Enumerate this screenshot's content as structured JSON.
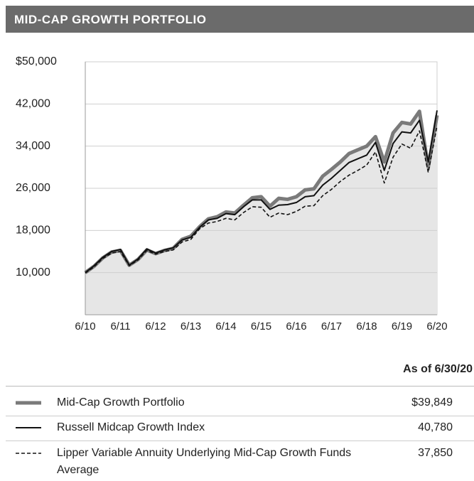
{
  "chart_data": {
    "type": "line",
    "title": "MID-CAP GROWTH PORTFOLIO",
    "categories": [
      "6/10",
      null,
      null,
      null,
      "6/11",
      null,
      null,
      null,
      "6/12",
      null,
      null,
      null,
      "6/13",
      null,
      null,
      null,
      "6/14",
      null,
      null,
      null,
      "6/15",
      null,
      null,
      null,
      "6/16",
      null,
      null,
      null,
      "6/17",
      null,
      null,
      null,
      "6/18",
      null,
      null,
      null,
      "6/19",
      null,
      null,
      null,
      "6/20"
    ],
    "ylim": [
      2000,
      50000
    ],
    "yticks": [
      {
        "value": 50000,
        "label": "$50,000"
      },
      {
        "value": 42000,
        "label": "42,000"
      },
      {
        "value": 34000,
        "label": "34,000"
      },
      {
        "value": 26000,
        "label": "26,000"
      },
      {
        "value": 18000,
        "label": "18,000"
      },
      {
        "value": 10000,
        "label": "10,000"
      }
    ],
    "grid": true,
    "legend_title": "As of 6/30/20",
    "series": [
      {
        "name": "Mid-Cap Growth Portfolio",
        "color": "#7a7a7a",
        "style": "thick",
        "fill": "#e6e6e6",
        "value_label": "$39,849",
        "values": [
          10000,
          11200,
          12800,
          13900,
          14200,
          11400,
          12500,
          14300,
          13600,
          14200,
          14600,
          16300,
          16900,
          18700,
          20200,
          20600,
          21500,
          21300,
          22800,
          24200,
          24400,
          22600,
          24100,
          23900,
          24400,
          25700,
          25900,
          28300,
          29600,
          31000,
          32600,
          33300,
          34000,
          35800,
          31000,
          36500,
          38500,
          38200,
          40600,
          30000,
          39849
        ]
      },
      {
        "name": "Russell Midcap Growth Index",
        "color": "#111111",
        "style": "solid",
        "value_label": "40,780",
        "values": [
          10000,
          11300,
          12900,
          14000,
          14400,
          11400,
          12600,
          14500,
          13700,
          14300,
          14700,
          16200,
          16700,
          18600,
          20000,
          20300,
          21200,
          21000,
          22500,
          23800,
          23800,
          22000,
          22800,
          22900,
          23300,
          24400,
          24600,
          26600,
          27900,
          29400,
          30900,
          31600,
          32300,
          34700,
          29400,
          34500,
          36700,
          36500,
          38900,
          31000,
          40780
        ]
      },
      {
        "name": "Lipper Variable Annuity Underlying Mid-Cap Growth Funds Average",
        "color": "#111111",
        "style": "dashed",
        "value_label": "37,850",
        "values": [
          9900,
          11100,
          12700,
          13700,
          14000,
          11300,
          12400,
          14200,
          13500,
          14000,
          14300,
          15800,
          16300,
          18300,
          19400,
          19700,
          20300,
          20000,
          21400,
          22500,
          22400,
          20500,
          21300,
          21000,
          21600,
          22600,
          22700,
          24600,
          25800,
          27300,
          28500,
          29400,
          30400,
          32900,
          27000,
          31900,
          34400,
          33600,
          36900,
          29000,
          37850
        ]
      }
    ]
  }
}
